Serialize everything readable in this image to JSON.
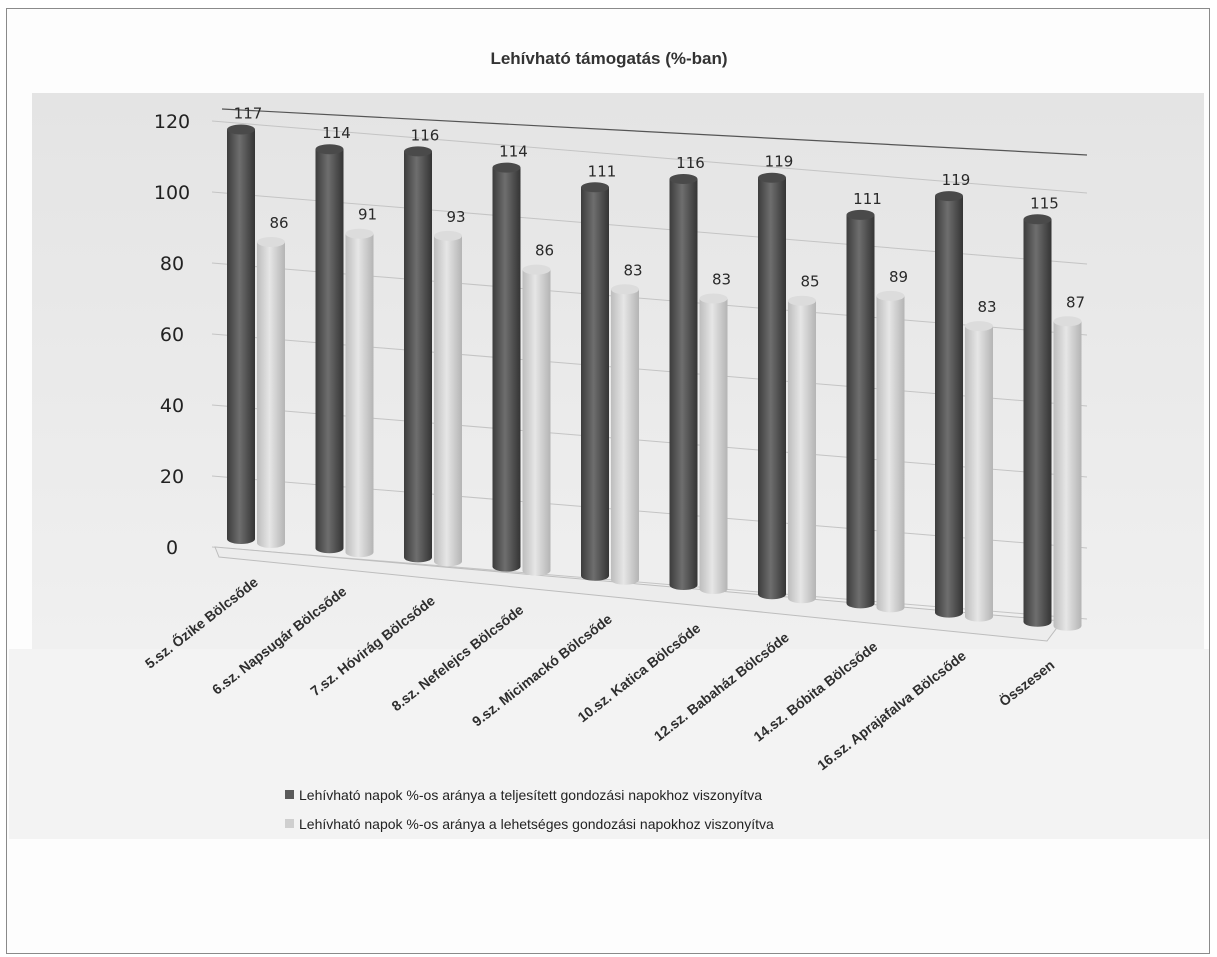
{
  "chart_data": {
    "type": "bar",
    "title": "Lehívható támogatás (%-ban)",
    "xlabel": "",
    "ylabel": "",
    "ylim": [
      0,
      120
    ],
    "yticks": [
      "0",
      "20",
      "40",
      "60",
      "80",
      "100",
      "120"
    ],
    "grid": true,
    "legend_position": "bottom",
    "categories": [
      "5.sz. Őzike Bölcsőde",
      "6.sz. Napsugár Bölcsőde",
      "7.sz. Hóvirág Bölcsőde",
      "8.sz. Nefelejcs Bölcsőde",
      "9.sz. Micimackó Bölcsőde",
      "10.sz. Katica Bölcsőde",
      "12.sz. Babaház Bölcsőde",
      "14.sz. Bóbita Bölcsőde",
      "16.sz. Aprajafalva Bölcsőde",
      "Összesen"
    ],
    "series": [
      {
        "name": "Lehívható napok %-os aránya a teljesített gondozási napokhoz viszonyítva",
        "values": [
          117,
          114,
          116,
          114,
          111,
          116,
          119,
          111,
          119,
          115
        ],
        "color": "#5a5a5a"
      },
      {
        "name": "Lehívható napok %-os aránya a lehetséges gondozási napokhoz viszonyítva",
        "values": [
          86,
          91,
          93,
          86,
          83,
          83,
          85,
          89,
          83,
          87
        ],
        "color": "#cfcfcf"
      }
    ]
  }
}
